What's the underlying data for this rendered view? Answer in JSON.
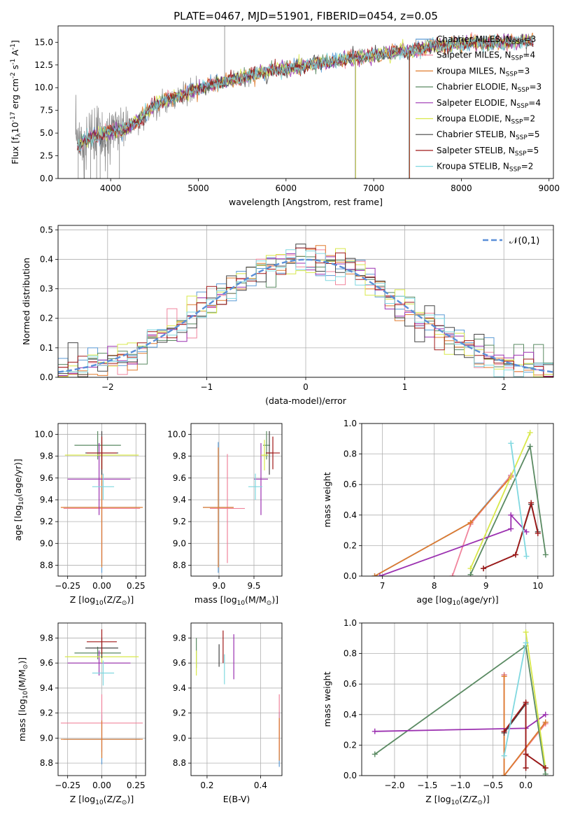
{
  "figure": {
    "title": "PLATE=0467, MJD=51901, FIBERID=0454, z=0.05"
  },
  "models": [
    {
      "name": "Chabrier MILES, N$_{SSP}$=3",
      "label_main": "Chabrier MILES, N",
      "label_n": "=3",
      "color": "#5b9bd5"
    },
    {
      "name": "Salpeter MILES, N$_{SSP}$=4",
      "label_main": "Salpeter MILES, N",
      "label_n": "=4",
      "color": "#f0849c"
    },
    {
      "name": "Kroupa MILES, N$_{SSP}$=3",
      "label_main": "Kroupa MILES, N",
      "label_n": "=3",
      "color": "#e07b2e"
    },
    {
      "name": "Chabrier ELODIE, N$_{SSP}$=3",
      "label_main": "Chabrier ELODIE, N",
      "label_n": "=3",
      "color": "#5a8a62"
    },
    {
      "name": "Salpeter ELODIE, N$_{SSP}$=4",
      "label_main": "Salpeter ELODIE, N",
      "label_n": "=4",
      "color": "#9b30b0"
    },
    {
      "name": "Kroupa ELODIE, N$_{SSP}$=2",
      "label_main": "Kroupa ELODIE, N",
      "label_n": "=2",
      "color": "#d8e84a"
    },
    {
      "name": "Chabrier STELIB, N$_{SSP}$=5",
      "label_main": "Chabrier STELIB, N",
      "label_n": "=5",
      "color": "#444444"
    },
    {
      "name": "Salpeter STELIB, N$_{SSP}$=5",
      "label_main": "Salpeter STELIB, N",
      "label_n": "=5",
      "color": "#a01818"
    },
    {
      "name": "Kroupa STELIB, N$_{SSP}$=2",
      "label_main": "Kroupa STELIB, N",
      "label_n": "=2",
      "color": "#80d8e0"
    }
  ],
  "chart_data": [
    {
      "id": "spectrum",
      "type": "line",
      "xlabel": "wavelength [Angstrom, rest frame]",
      "ylabel": "Flux [f$_\\lambda$10$^{-17}$ erg cm$^{-2}$ s$^{-1}$ A$^{-1}$]",
      "xlim": [
        3400,
        9050
      ],
      "ylim": [
        0,
        16.8
      ],
      "xticks": [
        4000,
        5000,
        6000,
        7000,
        8000,
        9000
      ],
      "yticks": [
        0.0,
        2.5,
        5.0,
        7.5,
        10.0,
        12.5,
        15.0
      ],
      "ytick_labels": [
        "0.0",
        "2.5",
        "5.0",
        "7.5",
        "10.0",
        "12.5",
        "15.0"
      ],
      "continuum": [
        [
          3600,
          3.4
        ],
        [
          3700,
          4.2
        ],
        [
          3800,
          4.6
        ],
        [
          3900,
          4.8
        ],
        [
          4000,
          5.2
        ],
        [
          4100,
          5.3
        ],
        [
          4200,
          5.6
        ],
        [
          4300,
          6.2
        ],
        [
          4500,
          8.1
        ],
        [
          4700,
          8.8
        ],
        [
          4900,
          9.5
        ],
        [
          5100,
          10.2
        ],
        [
          5300,
          10.7
        ],
        [
          5500,
          11.1
        ],
        [
          5700,
          11.6
        ],
        [
          5900,
          12.0
        ],
        [
          6100,
          12.2
        ],
        [
          6300,
          12.6
        ],
        [
          6500,
          12.8
        ],
        [
          6700,
          13.2
        ],
        [
          6900,
          13.3
        ],
        [
          7100,
          13.7
        ],
        [
          7300,
          14.0
        ],
        [
          7500,
          14.2
        ],
        [
          7700,
          14.6
        ],
        [
          7900,
          14.7
        ],
        [
          8100,
          15.0
        ],
        [
          8300,
          14.9
        ],
        [
          8500,
          15.0
        ],
        [
          8800,
          15.1
        ]
      ],
      "spikes": [
        [
          5300,
          16.8,
          0.1
        ],
        [
          3630,
          0,
          5
        ],
        [
          3700,
          0,
          9
        ],
        [
          3770,
          0,
          7
        ],
        [
          3840,
          0,
          8
        ],
        [
          3880,
          0,
          6
        ],
        [
          3965,
          0,
          6
        ],
        [
          4100,
          0,
          8
        ],
        [
          6790,
          0,
          13
        ],
        [
          7400,
          0,
          14
        ]
      ]
    },
    {
      "id": "residuals",
      "type": "histogram",
      "xlabel": "(data-model)/error",
      "ylabel": "Normed distribution",
      "xlim": [
        -2.5,
        2.5
      ],
      "ylim": [
        0,
        0.515
      ],
      "xticks": [
        -2,
        -1,
        0,
        1,
        2
      ],
      "xtick_labels": [
        "−2",
        "−1",
        "0",
        "1",
        "2"
      ],
      "yticks": [
        0.0,
        0.1,
        0.2,
        0.3,
        0.4,
        0.5
      ],
      "ytick_labels": [
        "0.0",
        "0.1",
        "0.2",
        "0.3",
        "0.4",
        "0.5"
      ],
      "legend": "$\\mathcal{N}(0,1)$",
      "bin_width": 0.1
    },
    {
      "id": "age_vs_Z",
      "type": "scatter",
      "xlabel": "Z [log$_{10}$(Z/Z$_\\odot$)]",
      "ylabel": "age  [log$_{10}$(age/yr)]",
      "xlim": [
        -0.32,
        0.32
      ],
      "ylim": [
        8.7,
        10.1
      ],
      "xticks": [
        -0.25,
        0.0,
        0.25
      ],
      "xtick_labels": [
        "−0.25",
        "0.00",
        "0.25"
      ],
      "yticks": [
        8.8,
        9.0,
        9.2,
        9.4,
        9.6,
        9.8,
        10.0
      ],
      "ytick_labels": [
        "8.8",
        "9.0",
        "9.2",
        "9.4",
        "9.6",
        "9.8",
        "10.0"
      ],
      "points": [
        {
          "m": 0,
          "x": 0.0,
          "y": 9.33,
          "xerr": 0.28,
          "yerr": 0.6
        },
        {
          "m": 1,
          "x": 0.0,
          "y": 9.32,
          "xerr": 0.28,
          "yerr": 0.5
        },
        {
          "m": 2,
          "x": 0.0,
          "y": 9.33,
          "xerr": 0.3,
          "yerr": 0.55
        },
        {
          "m": 3,
          "x": -0.03,
          "y": 9.9,
          "xerr": 0.17,
          "yerr": 0.13
        },
        {
          "m": 4,
          "x": -0.02,
          "y": 9.59,
          "xerr": 0.23,
          "yerr": 0.33
        },
        {
          "m": 5,
          "x": 0.0,
          "y": 9.81,
          "xerr": 0.27,
          "yerr": 0.14
        },
        {
          "m": 6,
          "x": 0.0,
          "y": 9.83,
          "xerr": 0.12,
          "yerr": 0.2
        },
        {
          "m": 7,
          "x": 0.0,
          "y": 9.83,
          "xerr": 0.11,
          "yerr": 0.15
        },
        {
          "m": 8,
          "x": 0.01,
          "y": 9.52,
          "xerr": 0.08,
          "yerr": 0.12
        }
      ]
    },
    {
      "id": "age_vs_mass",
      "type": "scatter",
      "xlabel": "mass [log$_{10}$(M/M$_\\odot$)]",
      "ylabel": "",
      "xlim": [
        8.6,
        9.9
      ],
      "ylim": [
        8.7,
        10.1
      ],
      "xticks": [
        9.0,
        9.5
      ],
      "xtick_labels": [
        "9.0",
        "9.5"
      ],
      "yticks": [
        8.8,
        9.0,
        9.2,
        9.4,
        9.6,
        9.8,
        10.0
      ],
      "ytick_labels": [
        "8.8",
        "9.0",
        "9.2",
        "9.4",
        "9.6",
        "9.8",
        "10.0"
      ],
      "points": [
        {
          "m": 0,
          "x": 8.99,
          "y": 9.33,
          "xerr": 0.22,
          "yerr": 0.6
        },
        {
          "m": 1,
          "x": 9.12,
          "y": 9.32,
          "xerr": 0.25,
          "yerr": 0.5
        },
        {
          "m": 2,
          "x": 8.99,
          "y": 9.33,
          "xerr": 0.22,
          "yerr": 0.55
        },
        {
          "m": 3,
          "x": 9.68,
          "y": 9.9,
          "xerr": 0.05,
          "yerr": 0.13
        },
        {
          "m": 4,
          "x": 9.6,
          "y": 9.59,
          "xerr": 0.1,
          "yerr": 0.33
        },
        {
          "m": 5,
          "x": 9.65,
          "y": 9.81,
          "xerr": 0.05,
          "yerr": 0.14
        },
        {
          "m": 6,
          "x": 9.72,
          "y": 9.83,
          "xerr": 0.05,
          "yerr": 0.2
        },
        {
          "m": 7,
          "x": 9.77,
          "y": 9.83,
          "xerr": 0.1,
          "yerr": 0.15
        },
        {
          "m": 8,
          "x": 9.52,
          "y": 9.52,
          "xerr": 0.1,
          "yerr": 0.12
        }
      ]
    },
    {
      "id": "massweight_vs_age",
      "type": "line",
      "xlabel": "age  [log$_{10}$(age/yr)]",
      "ylabel": "mass weight",
      "xlim": [
        6.6,
        10.3
      ],
      "ylim": [
        0.0,
        1.0
      ],
      "xticks": [
        7,
        8,
        9,
        10
      ],
      "xtick_labels": [
        "7",
        "8",
        "9",
        "10"
      ],
      "yticks": [
        0.0,
        0.2,
        0.4,
        0.6,
        0.8,
        1.0
      ],
      "ytick_labels": [
        "0.0",
        "0.2",
        "0.4",
        "0.6",
        "0.8",
        "1.0"
      ],
      "series": [
        {
          "m": 0,
          "points": [
            [
              6.85,
              0.0
            ],
            [
              8.7,
              0.35
            ],
            [
              9.48,
              0.66
            ]
          ]
        },
        {
          "m": 1,
          "points": [
            [
              8.35,
              0.0
            ],
            [
              8.7,
              0.34
            ],
            [
              9.48,
              0.66
            ]
          ]
        },
        {
          "m": 2,
          "points": [
            [
              6.85,
              0.0
            ],
            [
              8.7,
              0.35
            ],
            [
              9.48,
              0.65
            ]
          ]
        },
        {
          "m": 3,
          "points": [
            [
              8.7,
              0.01
            ],
            [
              9.85,
              0.85
            ],
            [
              10.15,
              0.14
            ]
          ]
        },
        {
          "m": 4,
          "points": [
            [
              6.95,
              0.0
            ],
            [
              9.48,
              0.31
            ],
            [
              9.48,
              0.4
            ],
            [
              9.78,
              0.29
            ]
          ]
        },
        {
          "m": 5,
          "points": [
            [
              8.7,
              0.05
            ],
            [
              9.85,
              0.94
            ]
          ]
        },
        {
          "m": 6,
          "points": [
            [
              8.95,
              0.05
            ],
            [
              9.57,
              0.14
            ],
            [
              9.87,
              0.47
            ],
            [
              10.0,
              0.29
            ]
          ]
        },
        {
          "m": 7,
          "points": [
            [
              8.95,
              0.05
            ],
            [
              9.57,
              0.14
            ],
            [
              9.87,
              0.48
            ],
            [
              10.0,
              0.28
            ]
          ]
        },
        {
          "m": 8,
          "points": [
            [
              9.48,
              0.87
            ],
            [
              9.78,
              0.13
            ]
          ]
        }
      ]
    },
    {
      "id": "mass_vs_Z",
      "type": "scatter",
      "xlabel": "Z [log$_{10}$(Z/Z$_\\odot$)]",
      "ylabel": "mass [log$_{10}$(M/M$_\\odot$)]",
      "xlim": [
        -0.32,
        0.32
      ],
      "ylim": [
        8.7,
        9.92
      ],
      "xticks": [
        -0.25,
        0.0,
        0.25
      ],
      "xtick_labels": [
        "−0.25",
        "0.00",
        "0.25"
      ],
      "yticks": [
        8.8,
        9.0,
        9.2,
        9.4,
        9.6,
        9.8
      ],
      "ytick_labels": [
        "8.8",
        "9.0",
        "9.2",
        "9.4",
        "9.6",
        "9.8"
      ],
      "points": [
        {
          "m": 0,
          "x": 0.0,
          "y": 8.99,
          "xerr": 0.28,
          "yerr": 0.2
        },
        {
          "m": 1,
          "x": 0.0,
          "y": 9.12,
          "xerr": 0.3,
          "yerr": 0.23
        },
        {
          "m": 2,
          "x": 0.0,
          "y": 8.99,
          "xerr": 0.3,
          "yerr": 0.15
        },
        {
          "m": 3,
          "x": -0.03,
          "y": 9.68,
          "xerr": 0.17,
          "yerr": 0.05
        },
        {
          "m": 4,
          "x": -0.02,
          "y": 9.6,
          "xerr": 0.23,
          "yerr": 0.1
        },
        {
          "m": 5,
          "x": 0.0,
          "y": 9.65,
          "xerr": 0.27,
          "yerr": 0.05
        },
        {
          "m": 6,
          "x": 0.0,
          "y": 9.72,
          "xerr": 0.12,
          "yerr": 0.08
        },
        {
          "m": 7,
          "x": 0.0,
          "y": 9.77,
          "xerr": 0.11,
          "yerr": 0.1
        },
        {
          "m": 8,
          "x": 0.01,
          "y": 9.52,
          "xerr": 0.08,
          "yerr": 0.1
        }
      ]
    },
    {
      "id": "mass_vs_EBV",
      "type": "scatter",
      "xlabel": "E(B-V)",
      "ylabel": "",
      "xlim": [
        0.14,
        0.48
      ],
      "ylim": [
        8.7,
        9.92
      ],
      "xticks": [
        0.2,
        0.4
      ],
      "xtick_labels": [
        "0.2",
        "0.4"
      ],
      "yticks": [
        8.8,
        9.0,
        9.2,
        9.4,
        9.6,
        9.8
      ],
      "ytick_labels": [
        "8.8",
        "9.0",
        "9.2",
        "9.4",
        "9.6",
        "9.8"
      ],
      "points": [
        {
          "m": 0,
          "x": 0.47,
          "y": 8.99,
          "xerr": 0,
          "yerr": 0.22
        },
        {
          "m": 1,
          "x": 0.47,
          "y": 9.12,
          "xerr": 0,
          "yerr": 0.23
        },
        {
          "m": 2,
          "x": 0.47,
          "y": 8.99,
          "xerr": 0,
          "yerr": 0.17
        },
        {
          "m": 3,
          "x": 0.16,
          "y": 9.68,
          "xerr": 0,
          "yerr": 0.12
        },
        {
          "m": 4,
          "x": 0.3,
          "y": 9.65,
          "xerr": 0,
          "yerr": 0.18
        },
        {
          "m": 5,
          "x": 0.16,
          "y": 9.6,
          "xerr": 0,
          "yerr": 0.1
        },
        {
          "m": 6,
          "x": 0.245,
          "y": 9.66,
          "xerr": 0,
          "yerr": 0.09
        },
        {
          "m": 7,
          "x": 0.26,
          "y": 9.73,
          "xerr": 0,
          "yerr": 0.13
        },
        {
          "m": 8,
          "x": 0.265,
          "y": 9.55,
          "xerr": 0,
          "yerr": 0.12
        }
      ]
    },
    {
      "id": "massweight_vs_Z",
      "type": "line",
      "xlabel": "Z [log$_{10}$(Z/Z$_\\odot$)]",
      "ylabel": "mass weight",
      "xlim": [
        -2.5,
        0.42
      ],
      "ylim": [
        0.0,
        1.0
      ],
      "xticks": [
        -2.0,
        -1.5,
        -1.0,
        -0.5,
        0.0
      ],
      "xtick_labels": [
        "−2.0",
        "−1.5",
        "−1.0",
        "−0.5",
        "0.0"
      ],
      "yticks": [
        0.0,
        0.2,
        0.4,
        0.6,
        0.8,
        1.0
      ],
      "ytick_labels": [
        "0.0",
        "0.2",
        "0.4",
        "0.6",
        "0.8",
        "1.0"
      ],
      "series": [
        {
          "m": 0,
          "points": [
            [
              -0.33,
              0.66
            ],
            [
              -0.33,
              0.0
            ],
            [
              0.3,
              0.35
            ]
          ]
        },
        {
          "m": 1,
          "points": [
            [
              -0.33,
              0.66
            ],
            [
              -0.33,
              0.0
            ],
            [
              0.3,
              0.34
            ]
          ]
        },
        {
          "m": 2,
          "points": [
            [
              -0.33,
              0.65
            ],
            [
              -0.33,
              0.0
            ],
            [
              0.3,
              0.35
            ]
          ]
        },
        {
          "m": 3,
          "points": [
            [
              -2.3,
              0.14
            ],
            [
              0.0,
              0.85
            ],
            [
              0.3,
              0.01
            ]
          ]
        },
        {
          "m": 4,
          "points": [
            [
              -2.3,
              0.29
            ],
            [
              0.0,
              0.31
            ],
            [
              0.3,
              0.4
            ]
          ]
        },
        {
          "m": 5,
          "points": [
            [
              0.0,
              0.94
            ],
            [
              0.3,
              0.05
            ]
          ]
        },
        {
          "m": 6,
          "points": [
            [
              -0.33,
              0.28
            ],
            [
              0.0,
              0.47
            ],
            [
              0.0,
              0.05
            ],
            [
              0.0,
              0.14
            ],
            [
              0.3,
              0.05
            ]
          ]
        },
        {
          "m": 7,
          "points": [
            [
              -0.33,
              0.29
            ],
            [
              0.0,
              0.48
            ],
            [
              0.0,
              0.05
            ],
            [
              0.0,
              0.14
            ],
            [
              0.3,
              0.05
            ]
          ]
        },
        {
          "m": 8,
          "points": [
            [
              -0.33,
              0.13
            ],
            [
              0.0,
              0.87
            ]
          ]
        }
      ]
    }
  ]
}
